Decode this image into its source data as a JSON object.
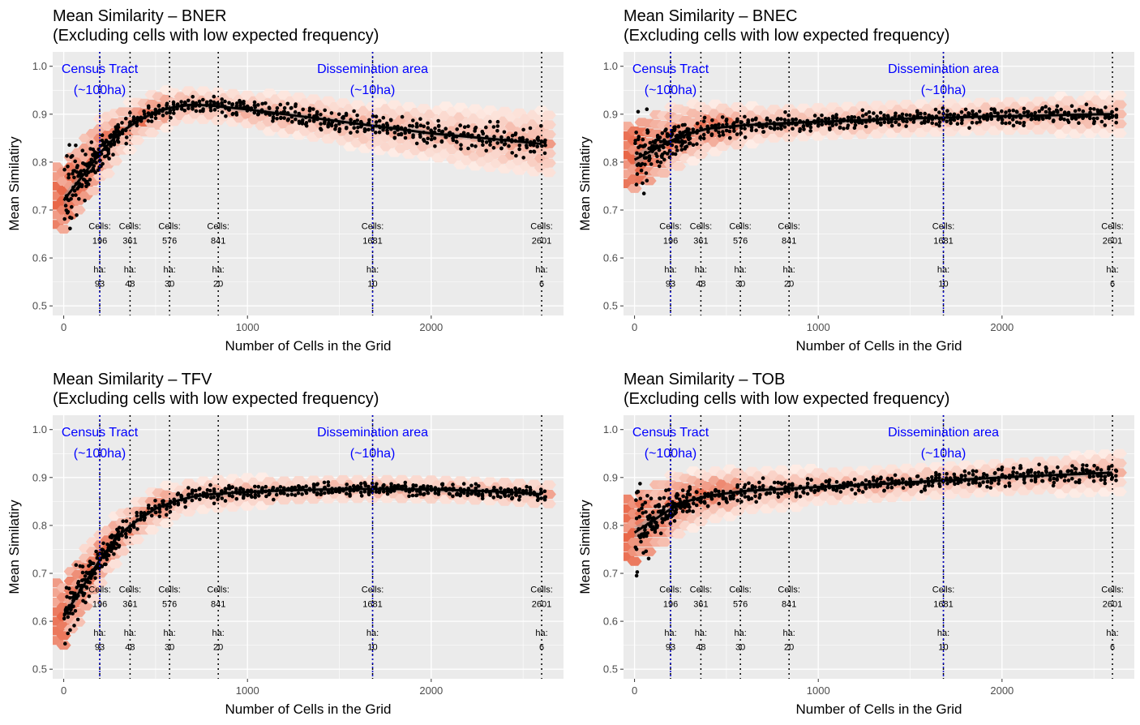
{
  "chart_data": [
    {
      "type": "scatter",
      "title": "Mean Similarity – BNER",
      "subtitle": "(Excluding cells with low expected frequency)",
      "xlabel": "Number of Cells in the Grid",
      "ylabel": "Mean Similatiry",
      "xlim": [
        -60,
        2720
      ],
      "ylim": [
        0.48,
        1.03
      ],
      "xticks": [
        0,
        1000,
        2000
      ],
      "xtick_labels": [
        "0",
        "1000",
        "2000"
      ],
      "yticks": [
        0.5,
        0.6,
        0.7,
        0.8,
        0.9,
        1.0
      ],
      "ytick_labels": [
        "0.5",
        "0.6",
        "0.7",
        "0.8",
        "0.9",
        "1.0"
      ],
      "grid": true,
      "smooth": {
        "x": [
          0,
          100,
          200,
          300,
          400,
          500,
          600,
          700,
          800,
          1000,
          1200,
          1400,
          1600,
          1800,
          2000,
          2200,
          2400,
          2600
        ],
        "y": [
          0.72,
          0.77,
          0.82,
          0.86,
          0.885,
          0.905,
          0.915,
          0.92,
          0.918,
          0.91,
          0.9,
          0.89,
          0.88,
          0.87,
          0.86,
          0.853,
          0.846,
          0.838
        ]
      },
      "scatter_spread": {
        "x": [
          0,
          50,
          100,
          200,
          400,
          800,
          1200,
          1600,
          2000,
          2600
        ],
        "y": [
          0.15,
          0.12,
          0.08,
          0.05,
          0.03,
          0.025,
          0.03,
          0.035,
          0.04,
          0.05
        ]
      }
    },
    {
      "type": "scatter",
      "title": "Mean Similarity – BNEC",
      "subtitle": "(Excluding cells with low expected frequency)",
      "xlabel": "Number of Cells in the Grid",
      "ylabel": "Mean Similatiry",
      "xlim": [
        -60,
        2720
      ],
      "ylim": [
        0.48,
        1.03
      ],
      "xticks": [
        0,
        1000,
        2000
      ],
      "xtick_labels": [
        "0",
        "1000",
        "2000"
      ],
      "yticks": [
        0.5,
        0.6,
        0.7,
        0.8,
        0.9,
        1.0
      ],
      "ytick_labels": [
        "0.5",
        "0.6",
        "0.7",
        "0.8",
        "0.9",
        "1.0"
      ],
      "grid": true,
      "smooth": {
        "x": [
          0,
          100,
          200,
          300,
          400,
          600,
          800,
          1000,
          1200,
          1400,
          1600,
          1800,
          2000,
          2200,
          2400,
          2600
        ],
        "y": [
          0.805,
          0.825,
          0.845,
          0.86,
          0.87,
          0.877,
          0.881,
          0.884,
          0.887,
          0.89,
          0.892,
          0.894,
          0.896,
          0.897,
          0.899,
          0.9
        ]
      },
      "scatter_spread": {
        "x": [
          0,
          50,
          100,
          200,
          400,
          800,
          1200,
          1600,
          2000,
          2600
        ],
        "y": [
          0.2,
          0.12,
          0.07,
          0.05,
          0.035,
          0.025,
          0.025,
          0.025,
          0.025,
          0.03
        ]
      }
    },
    {
      "type": "scatter",
      "title": "Mean Similarity – TFV",
      "subtitle": "(Excluding cells with low expected frequency)",
      "xlabel": "Number of Cells in the Grid",
      "ylabel": "Mean Similatiry",
      "xlim": [
        -60,
        2720
      ],
      "ylim": [
        0.48,
        1.03
      ],
      "xticks": [
        0,
        1000,
        2000
      ],
      "xtick_labels": [
        "0",
        "1000",
        "2000"
      ],
      "yticks": [
        0.5,
        0.6,
        0.7,
        0.8,
        0.9,
        1.0
      ],
      "ytick_labels": [
        "0.5",
        "0.6",
        "0.7",
        "0.8",
        "0.9",
        "1.0"
      ],
      "grid": true,
      "smooth": {
        "x": [
          0,
          100,
          200,
          300,
          400,
          500,
          600,
          700,
          800,
          1000,
          1200,
          1400,
          1600,
          1800,
          2000,
          2200,
          2400,
          2600
        ],
        "y": [
          0.61,
          0.67,
          0.73,
          0.78,
          0.81,
          0.835,
          0.85,
          0.86,
          0.865,
          0.87,
          0.873,
          0.875,
          0.876,
          0.876,
          0.875,
          0.873,
          0.87,
          0.865
        ]
      },
      "scatter_spread": {
        "x": [
          0,
          50,
          100,
          200,
          400,
          800,
          1200,
          1600,
          2000,
          2600
        ],
        "y": [
          0.1,
          0.09,
          0.06,
          0.04,
          0.03,
          0.025,
          0.02,
          0.02,
          0.02,
          0.02
        ]
      }
    },
    {
      "type": "scatter",
      "title": "Mean Similarity – TOB",
      "subtitle": "(Excluding cells with low expected frequency)",
      "xlabel": "Number of Cells in the Grid",
      "ylabel": "Mean Similatiry",
      "xlim": [
        -60,
        2720
      ],
      "ylim": [
        0.48,
        1.03
      ],
      "xticks": [
        0,
        1000,
        2000
      ],
      "xtick_labels": [
        "0",
        "1000",
        "2000"
      ],
      "yticks": [
        0.5,
        0.6,
        0.7,
        0.8,
        0.9,
        1.0
      ],
      "ytick_labels": [
        "0.5",
        "0.6",
        "0.7",
        "0.8",
        "0.9",
        "1.0"
      ],
      "grid": true,
      "smooth": {
        "x": [
          0,
          100,
          200,
          300,
          400,
          600,
          800,
          1000,
          1200,
          1400,
          1600,
          1800,
          2000,
          2200,
          2400,
          2600
        ],
        "y": [
          0.785,
          0.81,
          0.835,
          0.852,
          0.862,
          0.872,
          0.876,
          0.88,
          0.884,
          0.888,
          0.892,
          0.896,
          0.9,
          0.904,
          0.907,
          0.91
        ]
      },
      "scatter_spread": {
        "x": [
          0,
          50,
          100,
          200,
          400,
          800,
          1200,
          1600,
          2000,
          2600
        ],
        "y": [
          0.2,
          0.12,
          0.07,
          0.05,
          0.035,
          0.03,
          0.025,
          0.025,
          0.025,
          0.03
        ]
      }
    }
  ],
  "reference_lines": {
    "blue": [
      {
        "x": 196,
        "label_top": "Census Tract",
        "label_bottom": "(~100ha)"
      },
      {
        "x": 1681,
        "label_top": "Dissemination area",
        "label_bottom": "(~10ha)"
      }
    ],
    "dotted": [
      196,
      361,
      576,
      841,
      1681,
      2601
    ],
    "annotations": [
      {
        "x": 196,
        "cells_label": "Cells:",
        "cells": "196",
        "ha_label": "ha:",
        "ha": "93"
      },
      {
        "x": 361,
        "cells_label": "Cells:",
        "cells": "361",
        "ha_label": "ha:",
        "ha": "48"
      },
      {
        "x": 576,
        "cells_label": "Cells:",
        "cells": "576",
        "ha_label": "ha:",
        "ha": "30"
      },
      {
        "x": 841,
        "cells_label": "Cells:",
        "cells": "841",
        "ha_label": "ha:",
        "ha": "20"
      },
      {
        "x": 1681,
        "cells_label": "Cells:",
        "cells": "1681",
        "ha_label": "ha:",
        "ha": "10"
      },
      {
        "x": 2601,
        "cells_label": "Cells:",
        "cells": "2601",
        "ha_label": "ha:",
        "ha": "6"
      }
    ]
  },
  "colors": {
    "panel_bg": "#ebebeb",
    "grid": "#ffffff",
    "points": "#000000",
    "smooth": "#000000",
    "ribbon": "#999999",
    "reference_blue": "#0000cc",
    "hex_low": "#fff5f0",
    "hex_high": "#e2431e"
  }
}
